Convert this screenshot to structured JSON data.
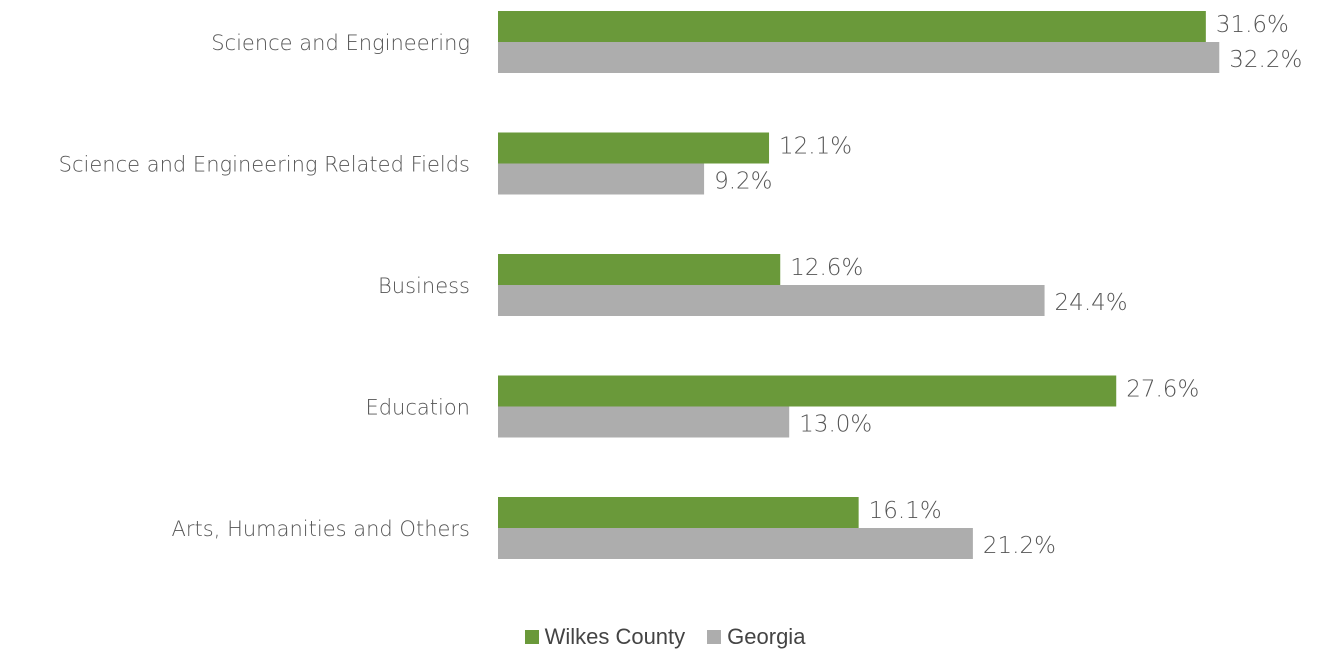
{
  "chart_data": {
    "type": "bar",
    "orientation": "horizontal",
    "categories": [
      "Science and Engineering",
      "Science and Engineering Related Fields",
      "Business",
      "Education",
      "Arts, Humanities and Others"
    ],
    "series": [
      {
        "name": "Wilkes County",
        "values": [
          31.6,
          12.1,
          12.6,
          27.6,
          16.1
        ],
        "labels": [
          "31.6%",
          "12.1%",
          "12.6%",
          "27.6%",
          "16.1%"
        ],
        "color": "#6a993a"
      },
      {
        "name": "Georgia",
        "values": [
          32.2,
          9.2,
          24.4,
          13.0,
          21.2
        ],
        "labels": [
          "32.2%",
          "9.2%",
          "24.4%",
          "13.0%",
          "21.2%"
        ],
        "color": "#adadad"
      }
    ],
    "title": "",
    "xlabel": "",
    "ylabel": "",
    "legend_position": "bottom",
    "grid": false
  }
}
